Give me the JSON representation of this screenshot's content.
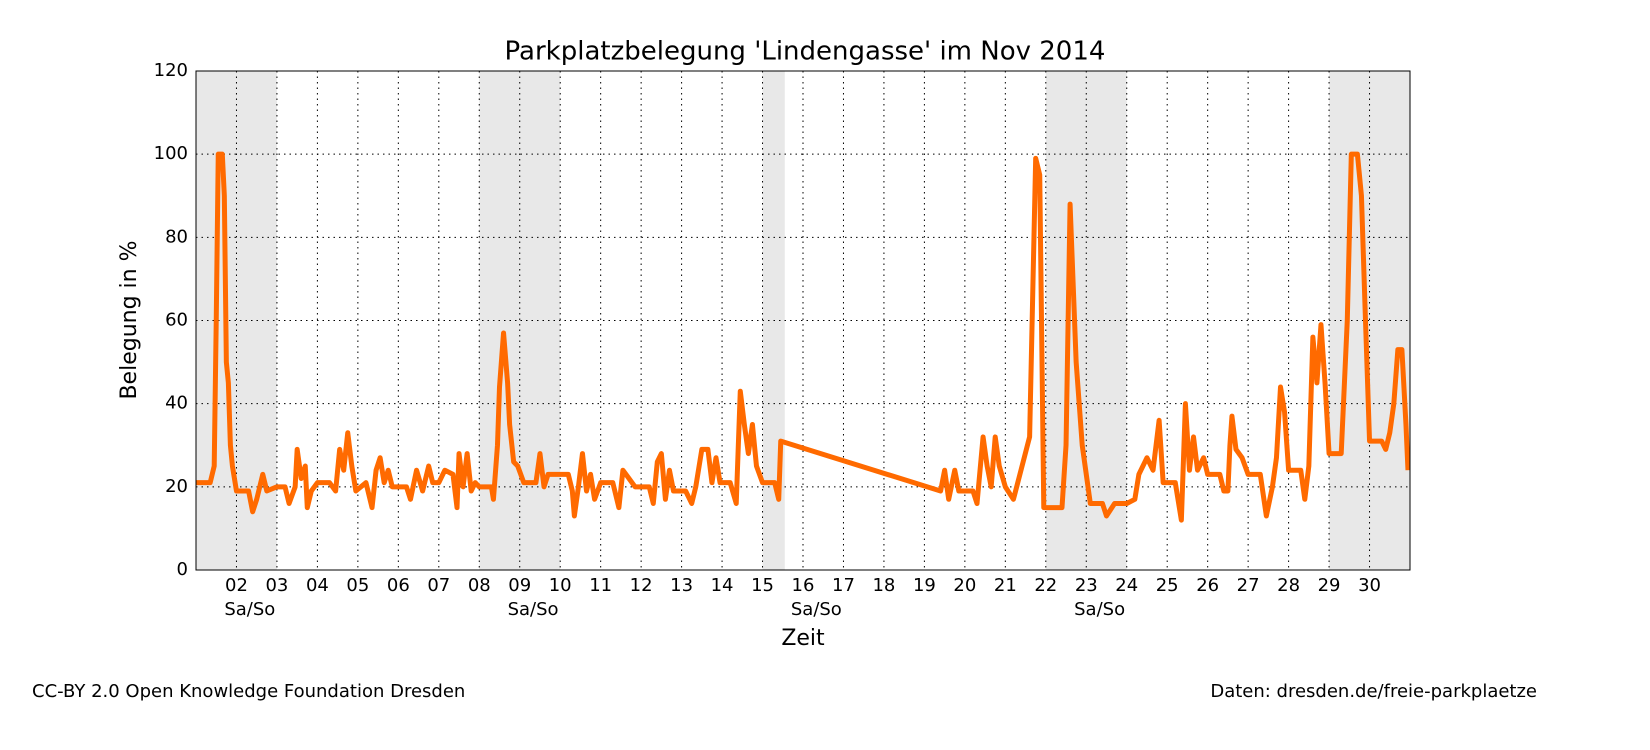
{
  "chart_data": {
    "type": "line",
    "title": "Parkplatzbelegung 'Lindengasse' im Nov 2014",
    "xlabel": "Zeit",
    "ylabel": "Belegung in %",
    "footer_left": "CC-BY 2.0 Open Knowledge Foundation Dresden",
    "footer_right": "Daten: dresden.de/freie-parkplaetze",
    "grid": true,
    "xlim": [
      1,
      31
    ],
    "ylim": [
      0,
      120
    ],
    "yticks": [
      0,
      20,
      40,
      60,
      80,
      100,
      120
    ],
    "xticks": [
      {
        "value": 2,
        "label": "02"
      },
      {
        "value": 3,
        "label": "03"
      },
      {
        "value": 4,
        "label": "04"
      },
      {
        "value": 5,
        "label": "05"
      },
      {
        "value": 6,
        "label": "06"
      },
      {
        "value": 7,
        "label": "07"
      },
      {
        "value": 8,
        "label": "08"
      },
      {
        "value": 9,
        "label": "09"
      },
      {
        "value": 10,
        "label": "10"
      },
      {
        "value": 11,
        "label": "11"
      },
      {
        "value": 12,
        "label": "12"
      },
      {
        "value": 13,
        "label": "13"
      },
      {
        "value": 14,
        "label": "14"
      },
      {
        "value": 15,
        "label": "15"
      },
      {
        "value": 16,
        "label": "16"
      },
      {
        "value": 17,
        "label": "17"
      },
      {
        "value": 18,
        "label": "18"
      },
      {
        "value": 19,
        "label": "19"
      },
      {
        "value": 20,
        "label": "20"
      },
      {
        "value": 21,
        "label": "21"
      },
      {
        "value": 22,
        "label": "22"
      },
      {
        "value": 23,
        "label": "23"
      },
      {
        "value": 24,
        "label": "24"
      },
      {
        "value": 25,
        "label": "25"
      },
      {
        "value": 26,
        "label": "26"
      },
      {
        "value": 27,
        "label": "27"
      },
      {
        "value": 28,
        "label": "28"
      },
      {
        "value": 29,
        "label": "29"
      },
      {
        "value": 30,
        "label": "30"
      }
    ],
    "weekends": [
      {
        "start": 1,
        "end": 3,
        "label": "Sa/So"
      },
      {
        "start": 8,
        "end": 10,
        "label": "Sa/So"
      },
      {
        "start": 15,
        "end": 15.55,
        "label": "Sa/So"
      },
      {
        "start": 22,
        "end": 24,
        "label": "Sa/So"
      },
      {
        "start": 29,
        "end": 31
      }
    ],
    "series": [
      {
        "name": "Belegung",
        "color": "#ff6a00",
        "x": [
          1.0,
          1.35,
          1.45,
          1.5,
          1.55,
          1.65,
          1.7,
          1.75,
          1.8,
          1.85,
          1.9,
          2.0,
          2.3,
          2.4,
          2.5,
          2.65,
          2.75,
          3.0,
          3.2,
          3.3,
          3.45,
          3.5,
          3.6,
          3.7,
          3.75,
          3.85,
          4.0,
          4.3,
          4.45,
          4.55,
          4.65,
          4.75,
          4.85,
          4.95,
          5.2,
          5.35,
          5.45,
          5.55,
          5.65,
          5.75,
          5.85,
          6.2,
          6.3,
          6.45,
          6.6,
          6.75,
          6.85,
          7.0,
          7.15,
          7.35,
          7.45,
          7.5,
          7.6,
          7.7,
          7.8,
          7.9,
          8.0,
          8.3,
          8.35,
          8.45,
          8.5,
          8.6,
          8.7,
          8.75,
          8.85,
          8.95,
          9.1,
          9.4,
          9.5,
          9.6,
          9.7,
          10.0,
          10.2,
          10.3,
          10.35,
          10.45,
          10.55,
          10.65,
          10.75,
          10.85,
          11.0,
          11.3,
          11.45,
          11.55,
          11.7,
          11.85,
          12.2,
          12.3,
          12.4,
          12.5,
          12.6,
          12.7,
          12.8,
          13.1,
          13.25,
          13.35,
          13.5,
          13.65,
          13.75,
          13.85,
          13.95,
          14.2,
          14.35,
          14.45,
          14.55,
          14.65,
          14.75,
          14.85,
          15.0,
          15.3,
          15.4,
          15.45,
          19.4,
          19.5,
          19.6,
          19.75,
          19.85,
          20.2,
          20.3,
          20.45,
          20.55,
          20.65,
          20.75,
          20.85,
          21.0,
          21.2,
          21.6,
          21.75,
          21.85,
          21.95,
          22.4,
          22.5,
          22.6,
          22.75,
          22.9,
          23.1,
          23.4,
          23.5,
          23.7,
          24.0,
          24.2,
          24.3,
          24.5,
          24.65,
          24.8,
          24.9,
          25.2,
          25.35,
          25.45,
          25.55,
          25.65,
          25.75,
          25.9,
          26.0,
          26.3,
          26.4,
          26.5,
          26.55,
          26.6,
          26.7,
          26.85,
          27.0,
          27.3,
          27.45,
          27.6,
          27.7,
          27.8,
          27.9,
          28.0,
          28.3,
          28.4,
          28.5,
          28.6,
          28.7,
          28.8,
          28.9,
          29.0,
          29.2,
          29.3,
          29.45,
          29.55,
          29.7,
          29.8,
          29.9,
          30.0,
          30.3,
          30.4,
          30.5,
          30.6,
          30.7,
          30.8,
          30.9,
          30.95
        ],
        "values": [
          21,
          21,
          25,
          60,
          100,
          100,
          90,
          50,
          45,
          30,
          25,
          19,
          19,
          14,
          17,
          23,
          19,
          20,
          20,
          16,
          20,
          29,
          22,
          25,
          15,
          19,
          21,
          21,
          19,
          29,
          24,
          33,
          25,
          19,
          21,
          15,
          24,
          27,
          21,
          24,
          20,
          20,
          17,
          24,
          19,
          25,
          21,
          21,
          24,
          23,
          15,
          28,
          20,
          28,
          19,
          21,
          20,
          20,
          17,
          30,
          44,
          57,
          45,
          35,
          26,
          25,
          21,
          21,
          28,
          20,
          23,
          23,
          23,
          19,
          13,
          20,
          28,
          19,
          23,
          17,
          21,
          21,
          15,
          24,
          22,
          20,
          20,
          16,
          26,
          28,
          17,
          24,
          19,
          19,
          16,
          20,
          29,
          29,
          21,
          27,
          21,
          21,
          16,
          43,
          35,
          28,
          35,
          25,
          21,
          21,
          17,
          31,
          19,
          24,
          17,
          24,
          19,
          19,
          16,
          32,
          25,
          20,
          32,
          25,
          20,
          17,
          32,
          99,
          95,
          15,
          15,
          30,
          88,
          50,
          30,
          16,
          16,
          13,
          16,
          16,
          17,
          23,
          27,
          24,
          36,
          21,
          21,
          12,
          40,
          24,
          32,
          24,
          27,
          23,
          23,
          19,
          19,
          30,
          37,
          29,
          27,
          23,
          23,
          13,
          20,
          27,
          44,
          38,
          24,
          24,
          17,
          25,
          56,
          45,
          59,
          45,
          28,
          28,
          28,
          60,
          100,
          100,
          90,
          60,
          31,
          31,
          29,
          33,
          40,
          53,
          53,
          35,
          24
        ]
      }
    ]
  }
}
